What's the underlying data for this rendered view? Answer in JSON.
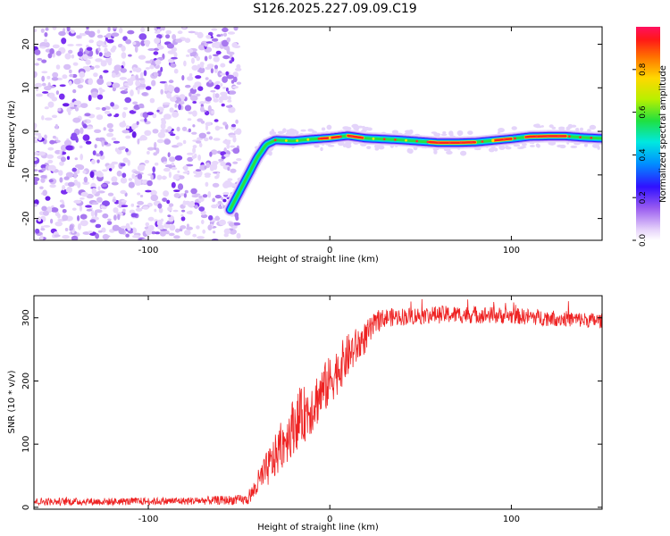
{
  "title": "S126.2025.227.09.09.C19",
  "chart_data": [
    {
      "type": "heatmap",
      "name": "spectrogram",
      "xlabel": "Height of straight line (km)",
      "ylabel": "Frequency (Hz)",
      "xlim": [
        -163,
        150
      ],
      "ylim": [
        -25,
        24
      ],
      "xticks": [
        -100,
        0,
        100
      ],
      "yticks": [
        -20,
        -10,
        0,
        10,
        20
      ],
      "noise_region_x": [
        -163,
        -52
      ],
      "ridge": {
        "x": [
          -55,
          -45,
          -40,
          -35,
          -30,
          -20,
          -10,
          0,
          10,
          20,
          30,
          40,
          50,
          60,
          70,
          80,
          90,
          100,
          110,
          120,
          130,
          140,
          150
        ],
        "y": [
          -18,
          -10,
          -6,
          -3,
          -2,
          -2.2,
          -1.8,
          -1.5,
          -1,
          -1.6,
          -1.8,
          -2,
          -2.3,
          -2.6,
          -2.6,
          -2.5,
          -2.1,
          -1.7,
          -1.2,
          -1.1,
          -1.1,
          -1.4,
          -1.6
        ],
        "peak_segments_x": [
          [
            -5,
            5
          ],
          [
            10,
            18
          ],
          [
            55,
            80
          ],
          [
            90,
            100
          ],
          [
            108,
            130
          ]
        ]
      },
      "colorbar": {
        "label": "Normalized spectral amplitude",
        "ticks": [
          0.0,
          0.2,
          0.4,
          0.6,
          0.8
        ],
        "tick_labels": [
          "0.0",
          "0.2",
          "0.4",
          "0.6",
          "0.8"
        ],
        "range": [
          0,
          1
        ]
      }
    },
    {
      "type": "line",
      "name": "snr",
      "xlabel": "Height of straight line (km)",
      "ylabel": "SNR (10 * v/v)",
      "xlim": [
        -163,
        150
      ],
      "ylim": [
        -3,
        335
      ],
      "xticks": [
        -100,
        0,
        100
      ],
      "yticks": [
        0,
        100,
        200,
        300
      ],
      "color": "#ee2222",
      "profile": {
        "x": [
          -163,
          -120,
          -80,
          -45,
          -38,
          -30,
          -20,
          -10,
          0,
          10,
          20,
          25,
          30,
          40,
          60,
          80,
          100,
          120,
          150
        ],
        "y": [
          9,
          9,
          10,
          12,
          45,
          80,
          130,
          160,
          200,
          240,
          270,
          290,
          300,
          302,
          305,
          305,
          303,
          300,
          295
        ],
        "noise_amplitude": [
          6,
          6,
          6,
          8,
          25,
          35,
          45,
          45,
          40,
          35,
          25,
          18,
          15,
          14,
          14,
          14,
          13,
          13,
          12
        ]
      }
    }
  ]
}
